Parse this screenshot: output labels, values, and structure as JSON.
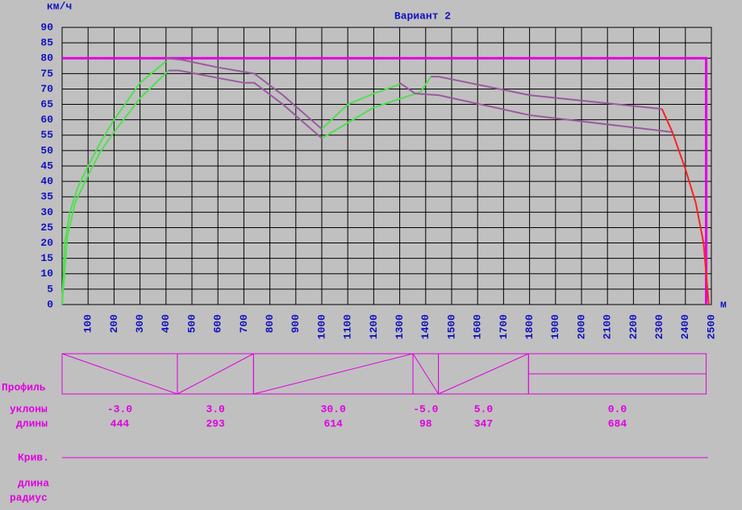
{
  "chart_data": {
    "type": "line",
    "title": "Вариант 2",
    "y_unit": "км/ч",
    "x_unit": "м",
    "xlim": [
      0,
      2500
    ],
    "xticks": [
      100,
      200,
      300,
      400,
      500,
      600,
      700,
      800,
      900,
      1000,
      1100,
      1200,
      1300,
      1400,
      1500,
      1600,
      1700,
      1800,
      1900,
      2000,
      2100,
      2200,
      2300,
      2400,
      2500
    ],
    "ylim": [
      0,
      90
    ],
    "yticks": [
      0,
      5,
      10,
      15,
      20,
      25,
      30,
      35,
      40,
      45,
      50,
      55,
      60,
      65,
      70,
      75,
      80,
      85,
      90
    ],
    "grid": true,
    "speed_limit": 80,
    "limit_color": "#e000e0",
    "series": [
      {
        "color": "#50e050",
        "x": [
          0,
          10,
          30,
          60,
          100,
          150,
          200,
          300,
          400
        ],
        "values": [
          0,
          20,
          30,
          38,
          45,
          53,
          60,
          72,
          79
        ]
      },
      {
        "color": "#50e050",
        "x": [
          0,
          20,
          50,
          100,
          150,
          200,
          300,
          410
        ],
        "values": [
          0,
          22,
          33,
          42,
          50,
          56,
          67,
          76
        ]
      },
      {
        "color": "#9a5aa0",
        "x": [
          400,
          460,
          600,
          740,
          850,
          1000
        ],
        "values": [
          80,
          79.5,
          77,
          75,
          68,
          57
        ]
      },
      {
        "color": "#9a5aa0",
        "x": [
          410,
          450,
          700,
          740,
          850,
          1000
        ],
        "values": [
          76,
          76,
          72,
          72,
          65,
          54
        ]
      },
      {
        "color": "#50e050",
        "x": [
          1000,
          1100,
          1200,
          1300
        ],
        "values": [
          57,
          65,
          68.5,
          71.5
        ]
      },
      {
        "color": "#50e050",
        "x": [
          1000,
          1100,
          1200,
          1380,
          1420
        ],
        "values": [
          54,
          59,
          64,
          69,
          74
        ]
      },
      {
        "color": "#9a5aa0",
        "x": [
          1300,
          1360,
          1450,
          1800,
          2300,
          2350
        ],
        "values": [
          72,
          68.5,
          68,
          61.5,
          56.5,
          56
        ]
      },
      {
        "color": "#9a5aa0",
        "x": [
          1420,
          1450,
          1800,
          2310
        ],
        "values": [
          74,
          74,
          68,
          63.5
        ]
      },
      {
        "color": "#ff2020",
        "x": [
          2310,
          2350,
          2400,
          2440,
          2470,
          2490
        ],
        "values": [
          63.5,
          56,
          44,
          33,
          20,
          0
        ]
      }
    ]
  },
  "profile": {
    "label": "Профиль",
    "grades_label": "уклоны",
    "lengths_label": "длины",
    "grades": [
      "-3.0",
      "3.0",
      "30.0",
      "-5.0",
      "5.0",
      "0.0"
    ],
    "lengths": [
      444,
      293,
      614,
      98,
      347,
      684
    ],
    "color": "#e000e0"
  },
  "curves": {
    "label": "Крив.",
    "length_label": "длина",
    "radius_label": "радиус"
  }
}
